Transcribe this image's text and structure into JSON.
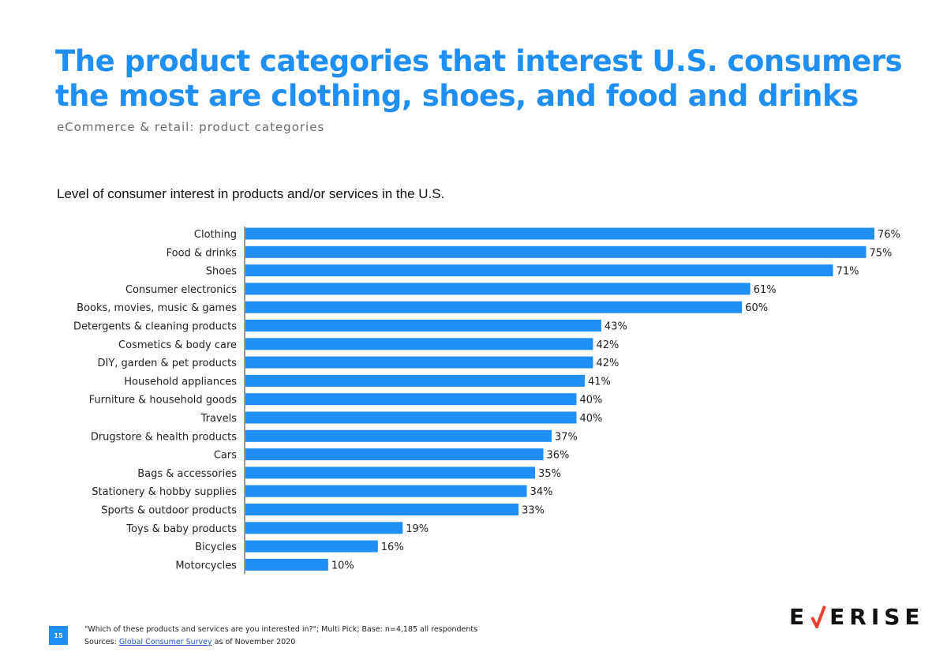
{
  "header": {
    "title": "The product categories that interest U.S. consumers the most are clothing, shoes, and food and drinks",
    "subtitle": "eCommerce & retail: product categories"
  },
  "chart_data": {
    "type": "bar",
    "orientation": "horizontal",
    "title": "Level of consumer interest in products and/or services in the U.S.",
    "categories": [
      "Clothing",
      "Food & drinks",
      "Shoes",
      "Consumer electronics",
      "Books, movies, music & games",
      "Detergents & cleaning products",
      "Cosmetics &  body  care",
      "DIY, garden & pet products",
      "Household appliances",
      "Furniture & household goods",
      "Travels",
      "Drugstore & health products",
      "Cars",
      "Bags & accessories",
      "Stationery & hobby supplies",
      "Sports & outdoor products",
      "Toys & baby products",
      "Bicycles",
      "Motorcycles"
    ],
    "values": [
      76,
      75,
      71,
      61,
      60,
      43,
      42,
      42,
      41,
      40,
      40,
      37,
      36,
      35,
      34,
      33,
      19,
      16,
      10
    ],
    "value_labels": [
      "76%",
      "75%",
      "71%",
      "61%",
      "60%",
      "43%",
      "42%",
      "42%",
      "41%",
      "40%",
      "40%",
      "37%",
      "36%",
      "35%",
      "34%",
      "33%",
      "19%",
      "16%",
      "10%"
    ],
    "xlim": [
      0,
      76
    ],
    "bar_color": "#1f8ff5",
    "grid": false
  },
  "footer": {
    "page_number": "15",
    "note": "\"Which of these products and services are you interested in?\"; Multi Pick; Base: n=4,185 all respondents",
    "sources_prefix": "Sources: ",
    "sources_link": "Global Consumer Survey",
    "sources_suffix": " as of November 2020"
  },
  "brand": {
    "logo_letters_left": "E",
    "logo_letters_right": "ERISE",
    "accent_color": "#e8432e",
    "logo_text": "EVERISE"
  }
}
